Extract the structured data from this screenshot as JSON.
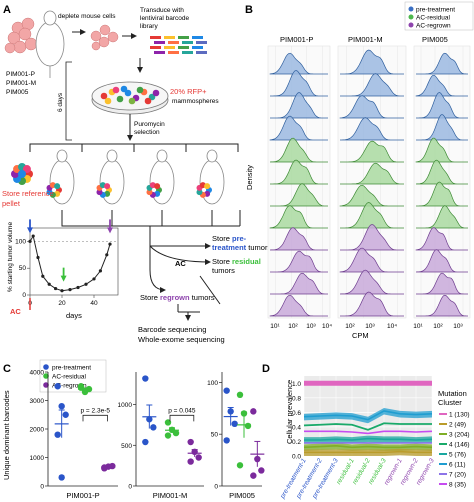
{
  "panels": {
    "a": {
      "letter": "A",
      "samples": [
        "PIM001-P",
        "PIM001-M",
        "PIM005"
      ],
      "deplete": "deplete mouse cells",
      "transduce": [
        "Transduce with",
        "lentiviral barcode",
        "library"
      ],
      "days": "6 days",
      "rfp": "20% RFP+",
      "mammospheres": "mammospheres",
      "puromycin": [
        "Puromycin",
        "selection"
      ],
      "store_reference": [
        "Store reference",
        "pellet"
      ],
      "ylabel": "% starting tumor volume",
      "xlabel": "days",
      "ac_label": "AC",
      "ac_mid": "AC",
      "store_pre": [
        "Store ",
        "pre-",
        "treatment",
        " tumors"
      ],
      "store_residual": [
        "Store ",
        "residual",
        " tumors"
      ],
      "store_regrown": [
        "Store ",
        "regrown",
        " tumors"
      ],
      "barcode_seq": [
        "Barcode sequencing",
        "Whole-exome sequencing"
      ]
    },
    "b": {
      "letter": "B",
      "sample_titles": [
        "PIM001-P",
        "PIM001-M",
        "PIM005"
      ],
      "ylabel": "Density",
      "xlabel": "CPM",
      "x_ticks": [
        "10¹",
        "10²",
        "10³",
        "10⁴",
        "10²",
        "10³",
        "10⁴",
        "10¹",
        "10²",
        "10³"
      ],
      "legend": [
        {
          "label": "pre-treatment",
          "color": "#3a6fc4"
        },
        {
          "label": "AC-residual",
          "color": "#4db84d"
        },
        {
          "label": "AC-regrown",
          "color": "#8e44ad"
        }
      ]
    },
    "c": {
      "letter": "C",
      "ylabel": "Unique dominant barcodes",
      "legend": [
        {
          "label": "pre-treatment",
          "color": "#2a55c9"
        },
        {
          "label": "AC-residual",
          "color": "#3bbf3b"
        },
        {
          "label": "AC-regrown",
          "color": "#7b2a9c"
        }
      ],
      "subplots": [
        {
          "title": "PIM001-P",
          "ylim": [
            0,
            4000
          ],
          "yticks": [
            "0",
            "1000",
            "2000",
            "3000",
            "4000"
          ],
          "pval": "p = 2.3e-5",
          "pre": [
            3500,
            2800,
            2500,
            1800,
            300
          ],
          "res": [
            3500,
            3350,
            3400,
            3450,
            3300
          ],
          "reg": [
            620,
            680,
            700,
            650
          ]
        },
        {
          "title": "PIM001-M",
          "ylim": [
            0,
            1400
          ],
          "yticks": [
            "0",
            "500",
            "1000"
          ],
          "pval": "p = 0.045",
          "pre": [
            1320,
            820,
            720,
            540
          ],
          "res": [
            780,
            690,
            650,
            620
          ],
          "reg": [
            540,
            420,
            350,
            300
          ]
        },
        {
          "title": "PIM005",
          "ylim": [
            0,
            110
          ],
          "yticks": [
            "0",
            "50",
            "100"
          ],
          "pval": "",
          "pre": [
            92,
            72,
            60,
            44
          ],
          "res": [
            88,
            70,
            58,
            20
          ],
          "reg": [
            72,
            26,
            15,
            10
          ]
        }
      ]
    },
    "d": {
      "letter": "D",
      "ylabel": "Cellular prevalence",
      "yticks": [
        "0.0",
        "0.2",
        "0.4",
        "0.6",
        "0.8",
        "1.0"
      ],
      "categories": [
        "pre-treatment-1",
        "pre-treatment-2",
        "pre-treatment-3",
        "residual-1",
        "residual-2",
        "residual-3",
        "regrown-1",
        "regrown-2",
        "regrown-3"
      ],
      "legend_title": [
        "Mutation",
        "Cluster"
      ],
      "clusters": [
        {
          "label": "1 (130)",
          "color": "#e066c0"
        },
        {
          "label": "2 (49)",
          "color": "#ba9c2b"
        },
        {
          "label": "3 (204)",
          "color": "#7fae26"
        },
        {
          "label": "4 (146)",
          "color": "#1aaa6a"
        },
        {
          "label": "5 (76)",
          "color": "#1aa7a0"
        },
        {
          "label": "6 (11)",
          "color": "#1f9dd0"
        },
        {
          "label": "7 (20)",
          "color": "#8d74e8"
        },
        {
          "label": "8 (35)",
          "color": "#c64cf0"
        }
      ]
    }
  },
  "chart_data": [
    {
      "type": "scatter",
      "panel": "A-inset",
      "xlabel": "days",
      "ylabel": "% starting tumor volume",
      "xlim": [
        0,
        55
      ],
      "ylim": [
        0,
        125
      ],
      "x": [
        0,
        2,
        5,
        8,
        12,
        16,
        20,
        25,
        30,
        35,
        40,
        44,
        48,
        50
      ],
      "values": [
        100,
        110,
        70,
        35,
        20,
        12,
        8,
        10,
        14,
        20,
        30,
        45,
        75,
        95
      ]
    },
    {
      "type": "scatter",
      "panel": "C",
      "series_names": [
        "pre-treatment",
        "AC-residual",
        "AC-regrown"
      ]
    },
    {
      "type": "area",
      "panel": "D",
      "ylabel": "Cellular prevalence",
      "ylim": [
        0,
        1.1
      ],
      "categories": [
        "pre-treatment-1",
        "pre-treatment-2",
        "pre-treatment-3",
        "residual-1",
        "residual-2",
        "residual-3",
        "regrown-1",
        "regrown-2",
        "regrown-3"
      ],
      "series": [
        {
          "name": "1 (130)",
          "values": [
            1.0,
            1.0,
            1.0,
            1.0,
            1.0,
            1.0,
            1.0,
            1.0,
            1.0
          ]
        },
        {
          "name": "2 (49)",
          "values": [
            0.05,
            0.05,
            0.05,
            0.05,
            0.05,
            0.05,
            0.06,
            0.05,
            0.05
          ]
        },
        {
          "name": "3 (204)",
          "values": [
            0.12,
            0.13,
            0.14,
            0.12,
            0.13,
            0.12,
            0.12,
            0.13,
            0.12
          ]
        },
        {
          "name": "4 (146)",
          "values": [
            0.42,
            0.43,
            0.44,
            0.43,
            0.36,
            0.45,
            0.44,
            0.44,
            0.44
          ]
        },
        {
          "name": "5 (76)",
          "values": [
            0.22,
            0.22,
            0.23,
            0.22,
            0.24,
            0.23,
            0.23,
            0.22,
            0.23
          ]
        },
        {
          "name": "6 (11)",
          "values": [
            0.54,
            0.55,
            0.56,
            0.55,
            0.5,
            0.62,
            0.58,
            0.57,
            0.58
          ]
        },
        {
          "name": "7 (20)",
          "values": [
            0.18,
            0.18,
            0.18,
            0.18,
            0.18,
            0.18,
            0.18,
            0.18,
            0.18
          ]
        },
        {
          "name": "8 (35)",
          "values": [
            0.34,
            0.34,
            0.34,
            0.33,
            0.31,
            0.34,
            0.34,
            0.33,
            0.34
          ]
        }
      ]
    }
  ]
}
